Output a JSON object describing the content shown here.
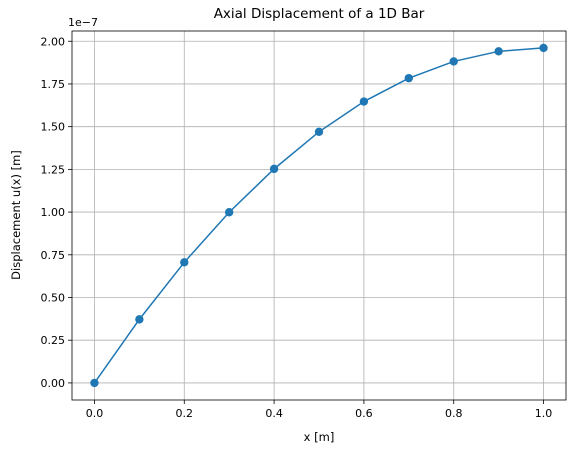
{
  "chart_data": {
    "type": "line",
    "title": "Axial Displacement of a 1D Bar",
    "xlabel": "x [m]",
    "ylabel": "Displacement u(x) [m]",
    "y_offset_label": "1e−7",
    "xlim": [
      -0.05,
      1.05
    ],
    "ylim": [
      -0.1,
      2.06
    ],
    "x_ticks": [
      0.0,
      0.2,
      0.4,
      0.6,
      0.8,
      1.0
    ],
    "x_tick_labels": [
      "0.0",
      "0.2",
      "0.4",
      "0.6",
      "0.8",
      "1.0"
    ],
    "y_ticks": [
      0.0,
      0.25,
      0.5,
      0.75,
      1.0,
      1.25,
      1.5,
      1.75,
      2.0
    ],
    "y_tick_labels": [
      "0.00",
      "0.25",
      "0.50",
      "0.75",
      "1.00",
      "1.25",
      "1.50",
      "1.75",
      "2.00"
    ],
    "grid": true,
    "series": [
      {
        "color": "#1f77b4",
        "marker": "circle",
        "x": [
          0.0,
          0.1,
          0.2,
          0.3,
          0.4,
          0.5,
          0.6,
          0.7,
          0.8,
          0.9,
          1.0
        ],
        "y": [
          0.0,
          0.372,
          0.706,
          0.999,
          1.253,
          1.47,
          1.647,
          1.784,
          1.882,
          1.941,
          1.961
        ]
      }
    ]
  }
}
